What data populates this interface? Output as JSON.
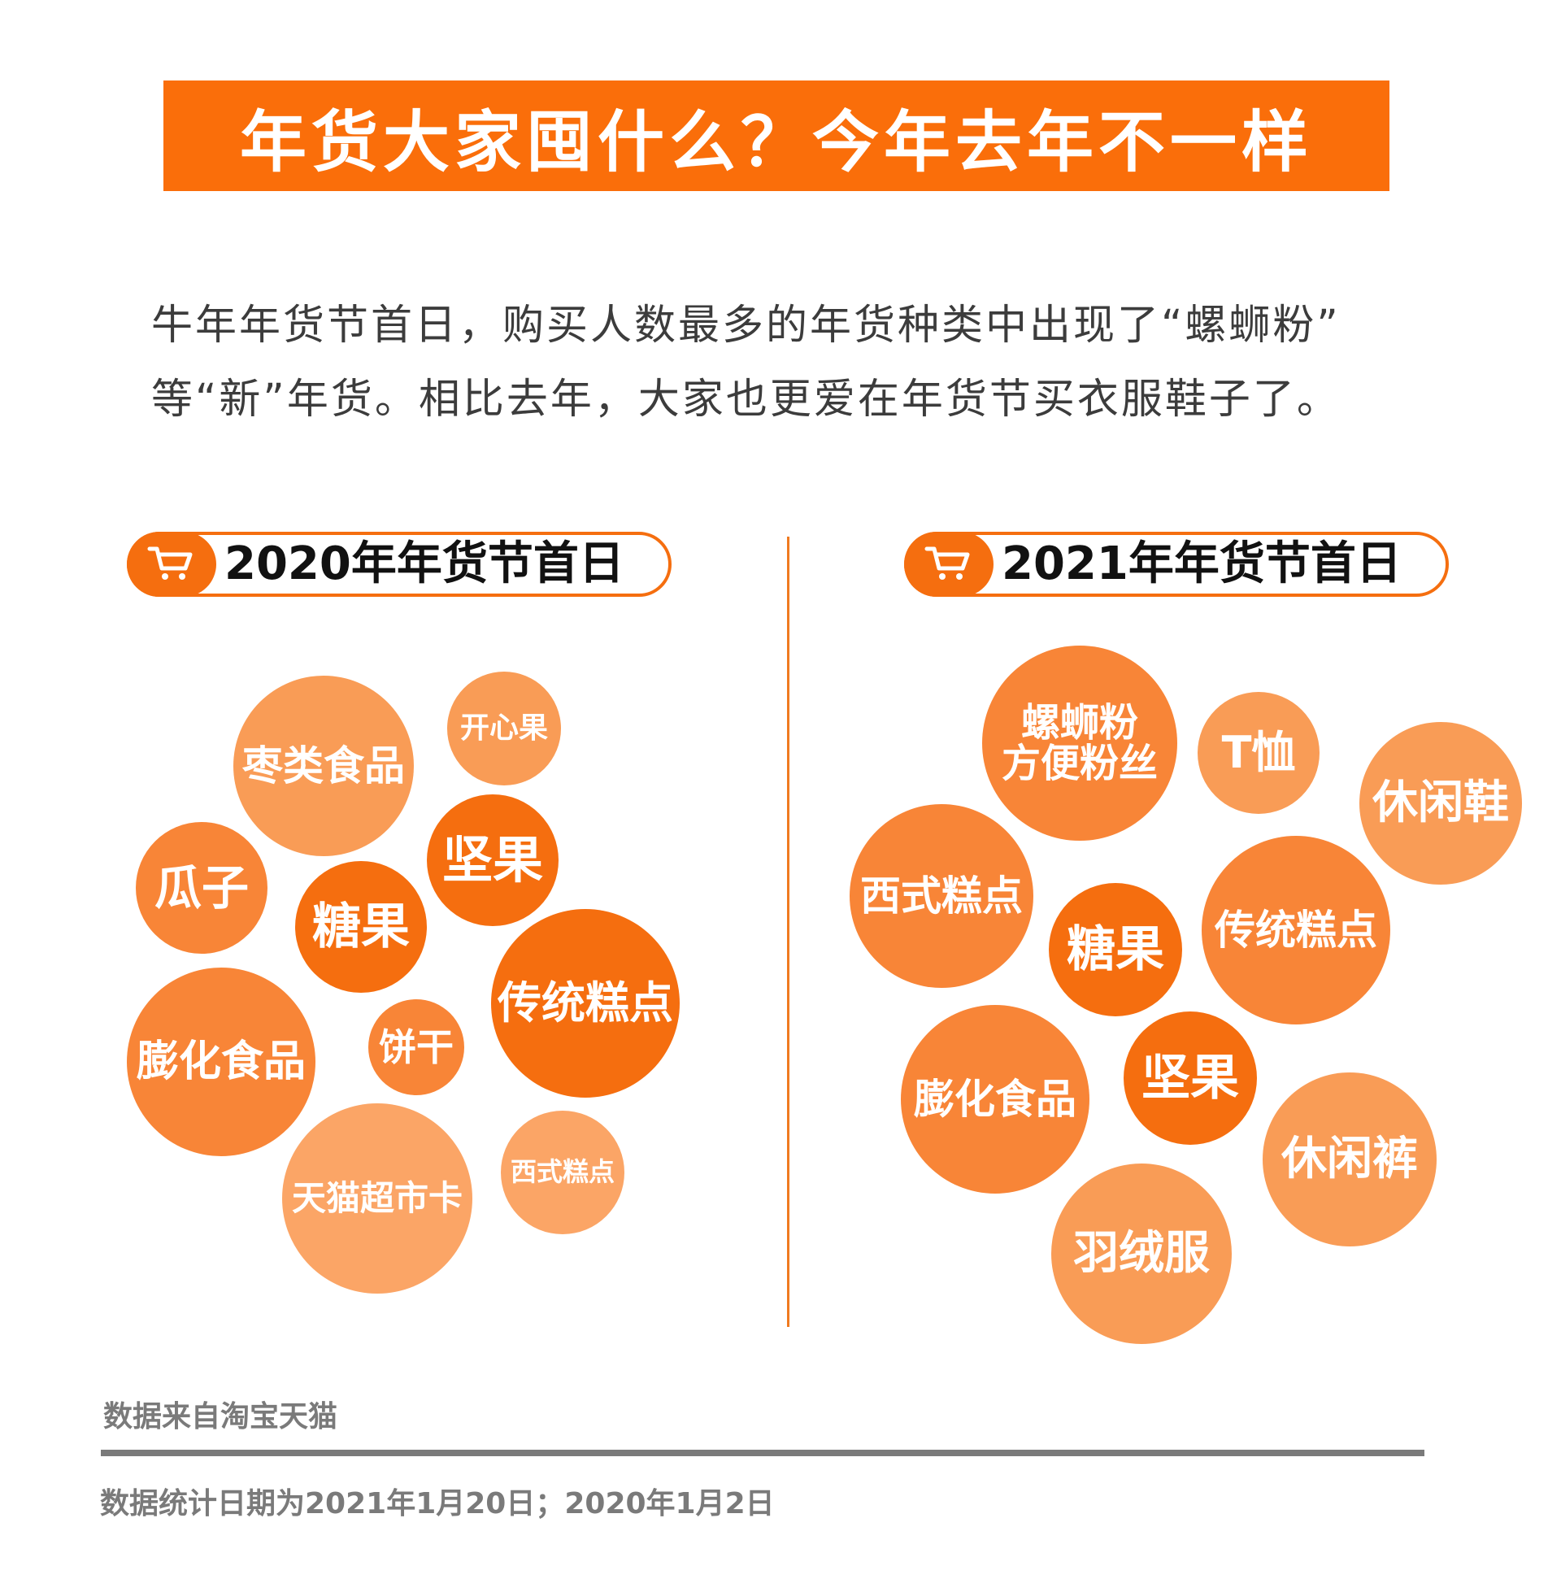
{
  "title": "年货大家囤什么？今年去年不一样",
  "intro": {
    "line1": "牛年年货节首日，购买人数最多的年货种类中出现了“螺蛳粉”",
    "line2": "等“新”年货。相比去年，大家也更爱在年货节买衣服鞋子了。"
  },
  "colors": {
    "accent": "#fa6e0a",
    "dark": "#f56e0f",
    "mid": "#f88537",
    "light": "#f99c56",
    "lighter": "#fba566",
    "gray": "#7a7a7a"
  },
  "icons": {
    "cart": "cart-icon"
  },
  "chart_data": [
    {
      "type": "bubble",
      "title": "2020年年货节首日",
      "items": [
        {
          "label": "枣类食品",
          "tone": "light"
        },
        {
          "label": "开心果",
          "tone": "light"
        },
        {
          "label": "瓜子",
          "tone": "mid"
        },
        {
          "label": "坚果",
          "tone": "dark"
        },
        {
          "label": "糖果",
          "tone": "dark"
        },
        {
          "label": "传统糕点",
          "tone": "dark"
        },
        {
          "label": "膨化食品",
          "tone": "mid"
        },
        {
          "label": "饼干",
          "tone": "mid"
        },
        {
          "label": "天猫超市卡",
          "tone": "lighter"
        },
        {
          "label": "西式糕点",
          "tone": "lighter"
        }
      ]
    },
    {
      "type": "bubble",
      "title": "2021年年货节首日",
      "items": [
        {
          "label": "螺蛳粉\n方便粉丝",
          "tone": "mid"
        },
        {
          "label": "T恤",
          "tone": "light"
        },
        {
          "label": "休闲鞋",
          "tone": "light"
        },
        {
          "label": "西式糕点",
          "tone": "mid"
        },
        {
          "label": "糖果",
          "tone": "dark"
        },
        {
          "label": "传统糕点",
          "tone": "mid"
        },
        {
          "label": "膨化食品",
          "tone": "mid"
        },
        {
          "label": "坚果",
          "tone": "dark"
        },
        {
          "label": "休闲裤",
          "tone": "light"
        },
        {
          "label": "羽绒服",
          "tone": "light"
        }
      ]
    }
  ],
  "footer": {
    "source": "数据来自淘宝天猫",
    "date_note": "数据统计日期为2021年1月20日；2020年1月2日"
  }
}
